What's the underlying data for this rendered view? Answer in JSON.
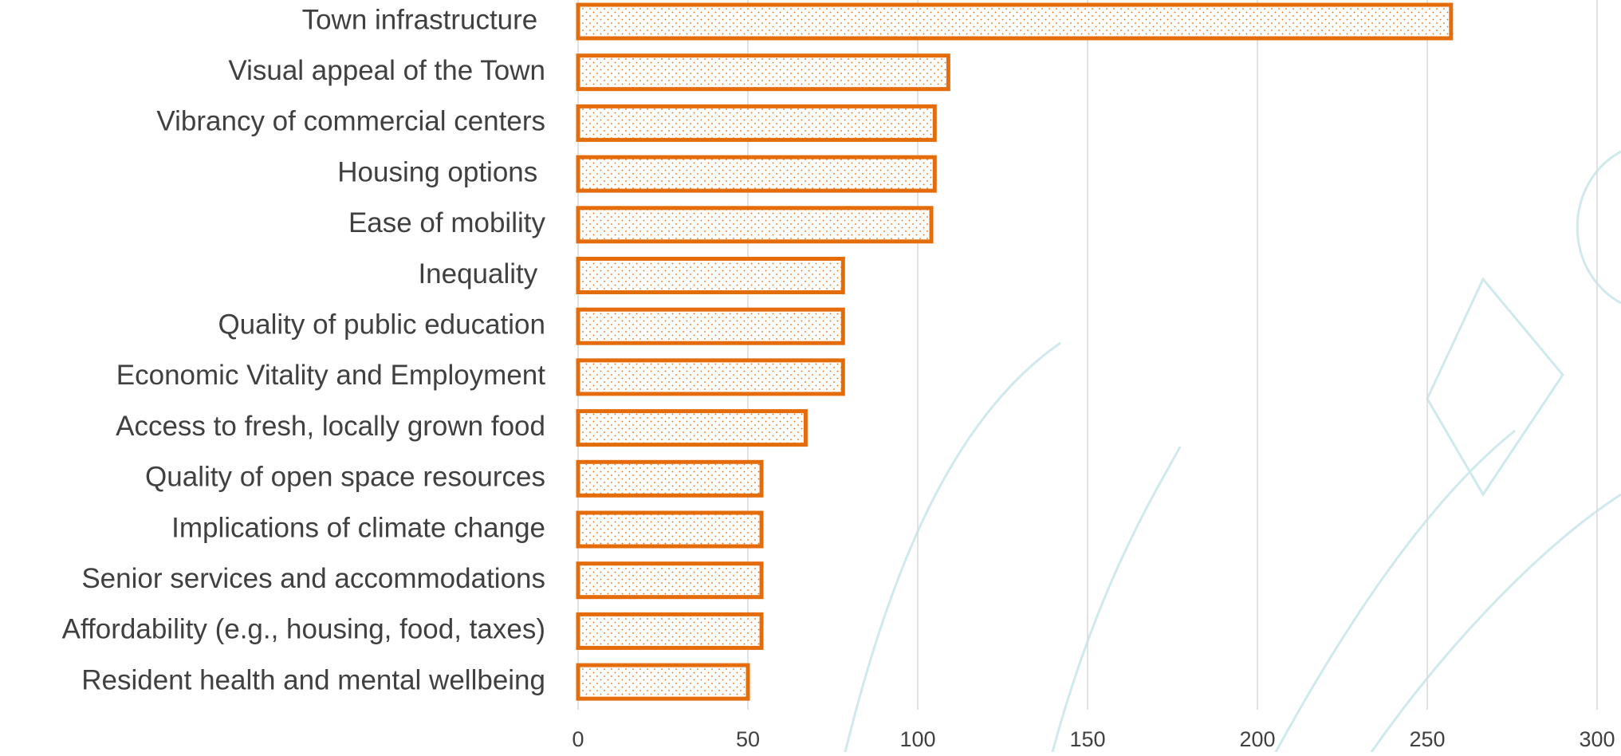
{
  "chart_data": {
    "type": "bar",
    "orientation": "horizontal",
    "categories": [
      "Town infrastructure ",
      "Visual appeal of the Town",
      "Vibrancy of commercial centers",
      "Housing options ",
      "Ease of mobility",
      "Inequality ",
      "Quality of public education",
      "Economic Vitality and Employment",
      "Access to fresh, locally grown food",
      "Quality of open space resources",
      "Implications of climate change",
      "Senior services and accommodations",
      "Affordability (e.g., housing, food, taxes)",
      "Resident health and mental wellbeing"
    ],
    "values": [
      257,
      109,
      105,
      105,
      104,
      78,
      78,
      78,
      67,
      54,
      54,
      54,
      54,
      50
    ],
    "color": "#e46c0a",
    "xlim": [
      0,
      300
    ],
    "xticks": [
      0,
      50,
      100,
      150,
      200,
      250,
      300
    ],
    "grid": true
  }
}
